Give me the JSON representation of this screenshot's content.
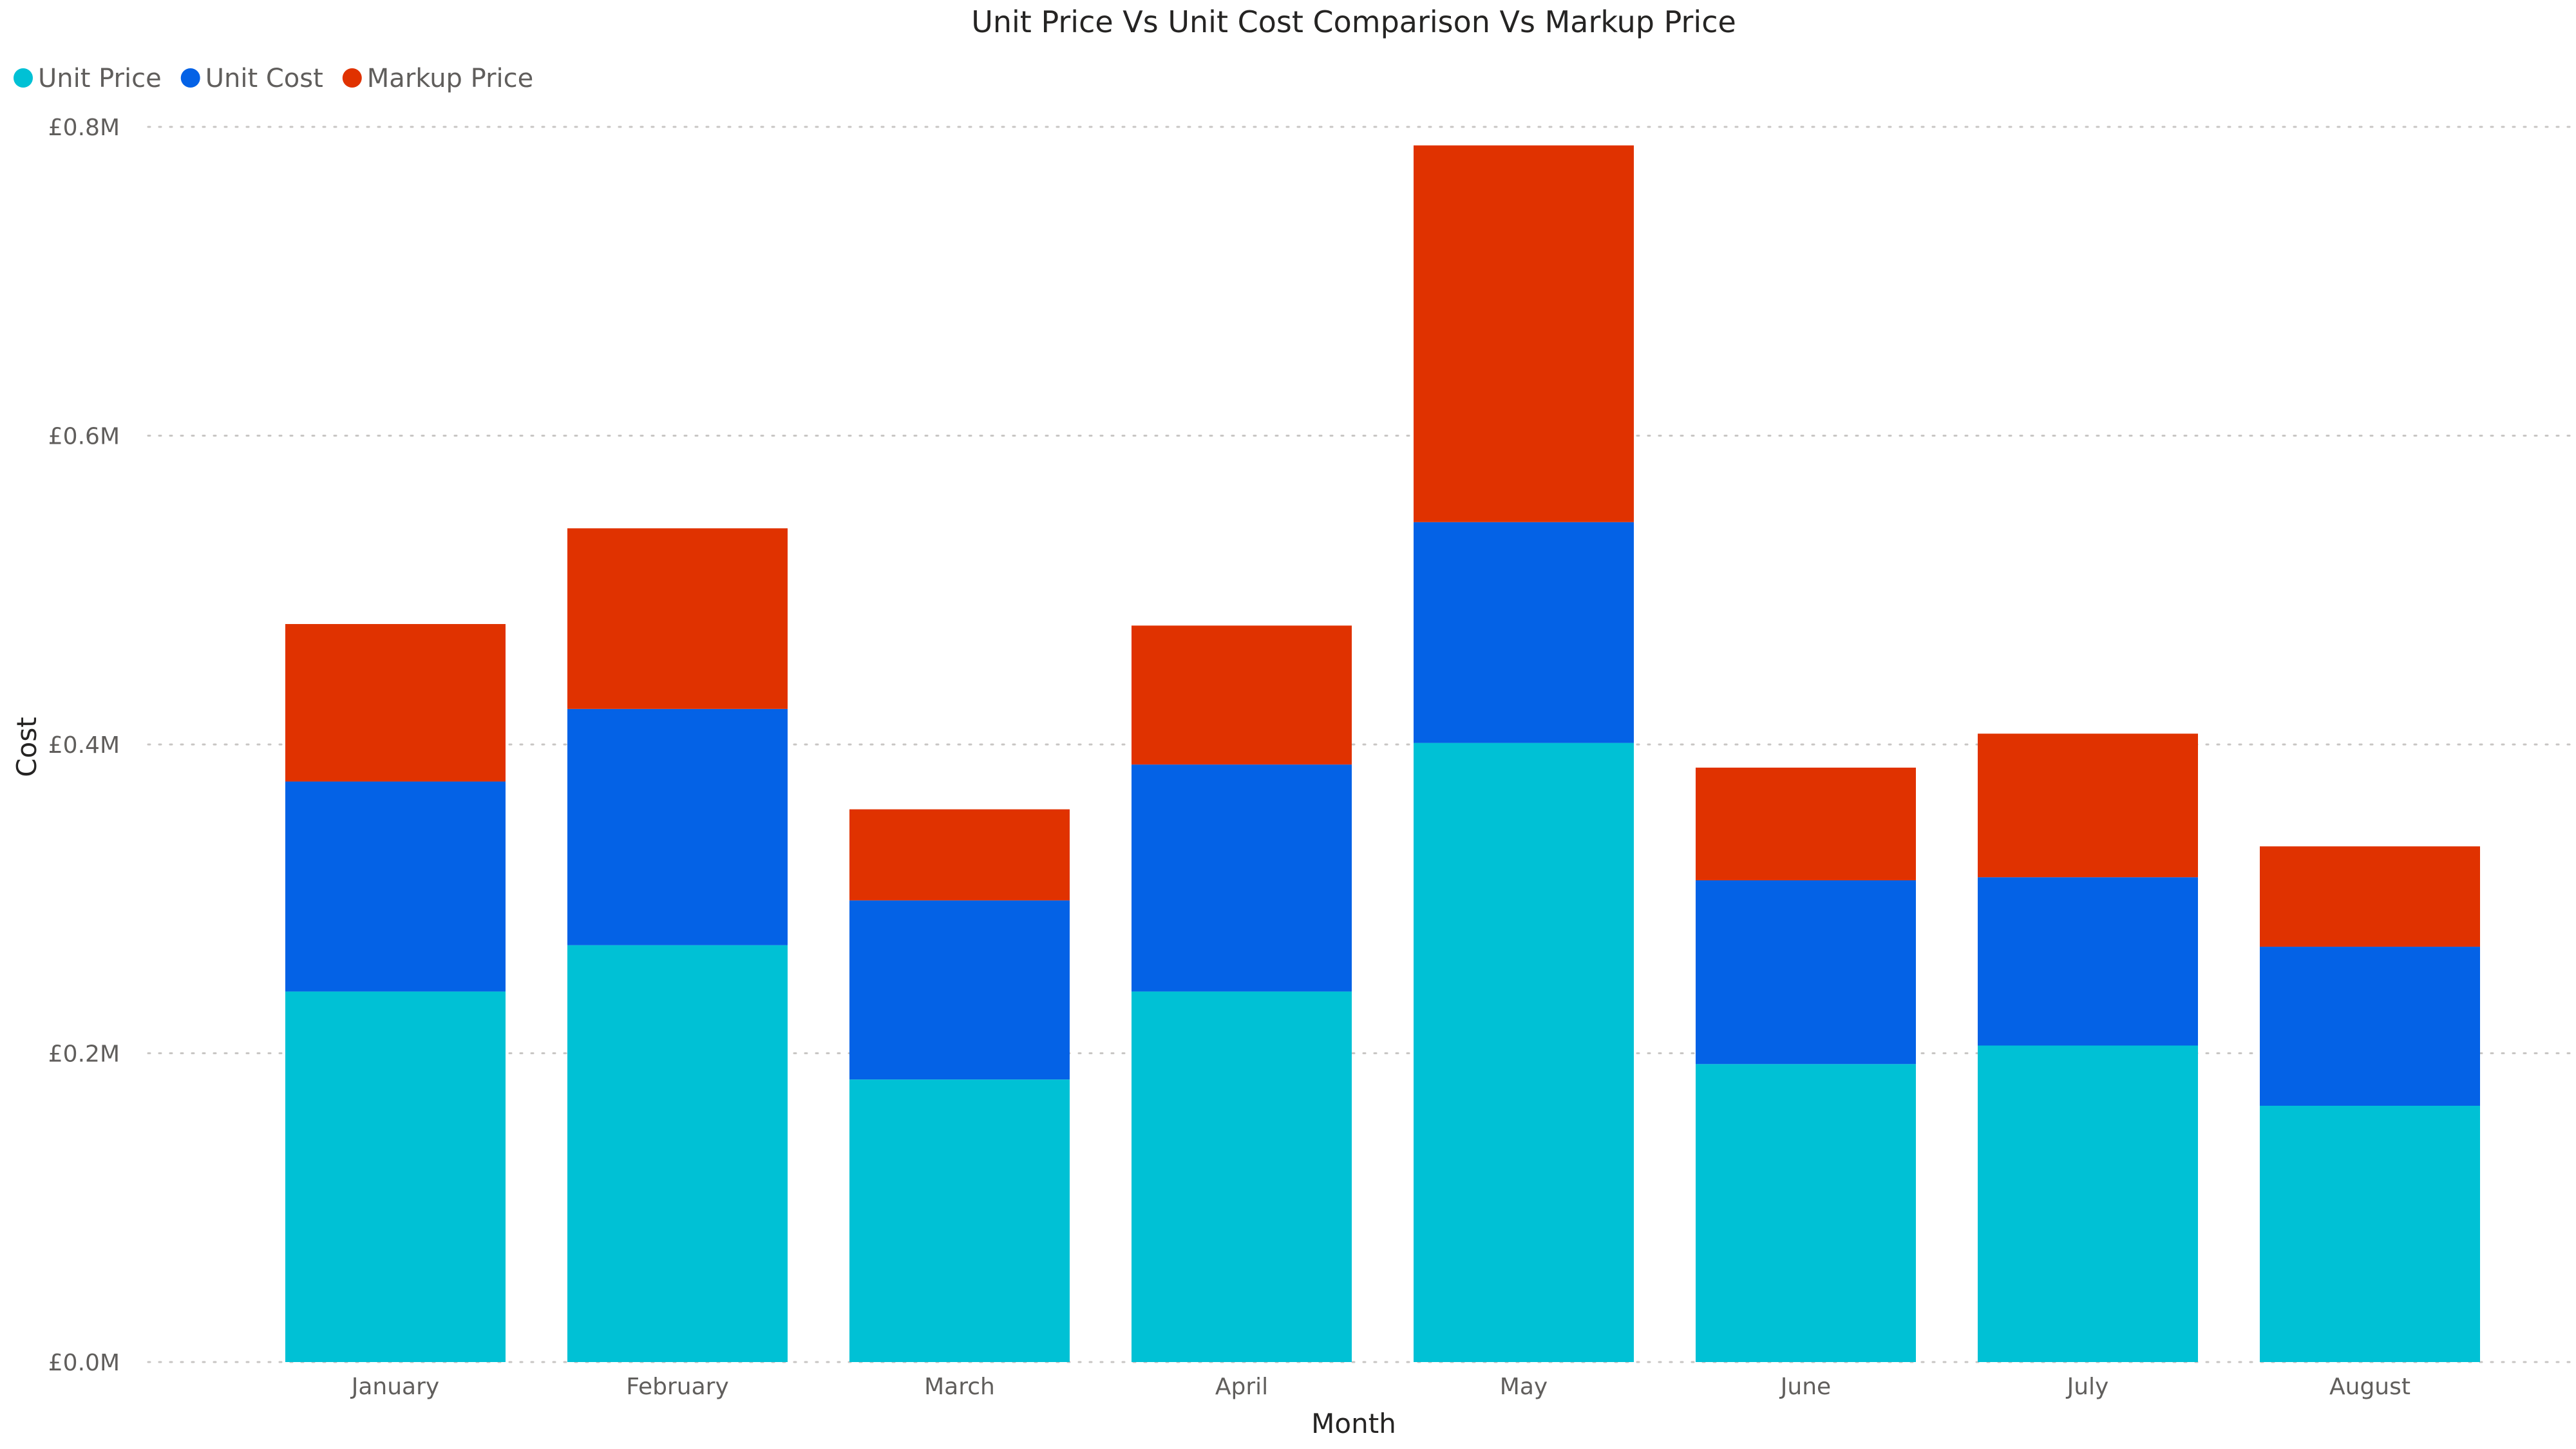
{
  "chart_data": {
    "type": "bar",
    "stacked": true,
    "title": "Unit Price Vs Unit Cost Comparison Vs Markup Price",
    "xlabel": "Month",
    "ylabel": "Cost",
    "ylim": [
      0,
      0.8
    ],
    "yticks": [
      0.0,
      0.2,
      0.4,
      0.6,
      0.8
    ],
    "ytick_labels": [
      "£0.0M",
      "£0.2M",
      "£0.4M",
      "£0.6M",
      "£0.8M"
    ],
    "grid": true,
    "legend_position": "top-left",
    "categories": [
      "January",
      "February",
      "March",
      "April",
      "May",
      "June",
      "July",
      "August"
    ],
    "series": [
      {
        "name": "Unit Price",
        "color": "#00c1d5",
        "values": [
          0.24,
          0.27,
          0.183,
          0.24,
          0.401,
          0.193,
          0.205,
          0.166
        ]
      },
      {
        "name": "Unit Cost",
        "color": "#0462e6",
        "values": [
          0.136,
          0.153,
          0.116,
          0.147,
          0.143,
          0.119,
          0.109,
          0.103
        ]
      },
      {
        "name": "Markup Price",
        "color": "#e03200",
        "values": [
          0.102,
          0.117,
          0.059,
          0.09,
          0.244,
          0.073,
          0.093,
          0.065
        ]
      }
    ]
  }
}
